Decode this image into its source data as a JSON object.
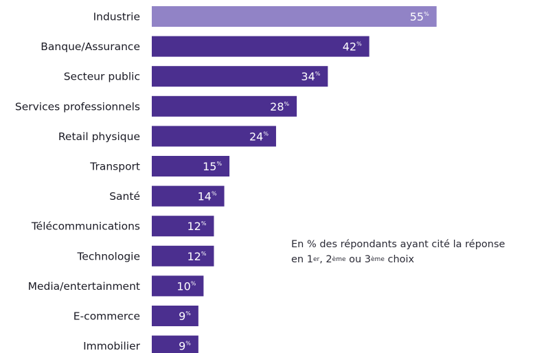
{
  "chart_data": {
    "type": "bar",
    "orientation": "horizontal",
    "categories": [
      "Industrie",
      "Banque/Assurance",
      "Secteur public",
      "Services professionnels",
      "Retail physique",
      "Transport",
      "Santé",
      "Télécommunications",
      "Technologie",
      "Media/entertainment",
      "E-commerce",
      "Immobilier"
    ],
    "values": [
      55,
      42,
      34,
      28,
      24,
      15,
      14,
      12,
      12,
      10,
      9,
      9
    ],
    "value_suffix": "%",
    "highlight_color": "#9183c6",
    "bar_color": "#4b2f8f",
    "title": "",
    "xlabel": "",
    "ylabel": "",
    "grid": false,
    "legend": "none"
  },
  "note": {
    "line1": "En % des répondants ayant cité la réponse",
    "line2_prefix": "en 1",
    "sup1": "er",
    "line2_mid": ", 2",
    "sup2": "ème",
    "line2_mid2": " ou 3",
    "sup3": "ème",
    "line2_suffix": " choix"
  }
}
